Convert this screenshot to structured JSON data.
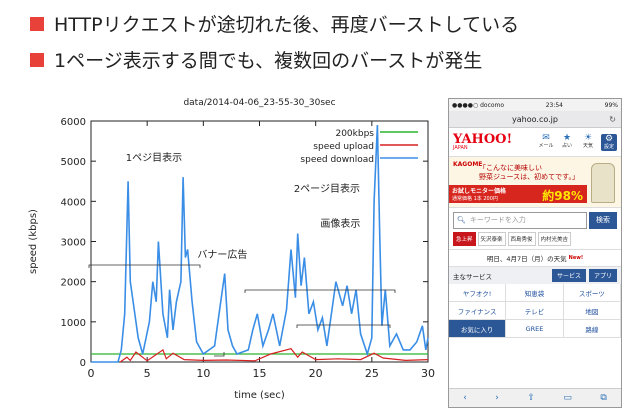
{
  "bullets": [
    "HTTPリクエストが途切れた後、再度バーストしている",
    "1ページ表示する間でも、複数回のバーストが発生"
  ],
  "colors": {
    "bullet": "#e8413a",
    "series_200kbps": "#2db52d",
    "series_upload": "#d62020",
    "series_download": "#3a8ee6"
  },
  "chart_data": {
    "type": "line",
    "title": "data/2014-04-06_23-55-30_30sec",
    "xlabel": "time (sec)",
    "ylabel": "speed (kbps)",
    "xlim": [
      0,
      30
    ],
    "ylim": [
      0,
      6000
    ],
    "xticks": [
      "0",
      "5",
      "10",
      "15",
      "20",
      "25",
      "30"
    ],
    "yticks": [
      "0",
      "1000",
      "2000",
      "3000",
      "4000",
      "5000",
      "6000"
    ],
    "legend_position": "top-right",
    "series": [
      {
        "name": "200kbps",
        "x": [
          0,
          30
        ],
        "values": [
          200,
          200
        ]
      },
      {
        "name": "speed upload",
        "x": [
          2.6,
          3.2,
          3.5,
          4.0,
          5.0,
          6.4,
          6.7,
          7.3,
          8.3,
          10.0,
          12.0,
          14.6,
          16.0,
          17.8,
          18.4,
          18.8,
          20.0,
          22.0,
          24.0,
          25.2,
          26.0,
          28.0,
          30.0
        ],
        "values": [
          0,
          120,
          40,
          250,
          30,
          300,
          80,
          220,
          60,
          40,
          50,
          30,
          200,
          330,
          120,
          250,
          60,
          80,
          60,
          220,
          100,
          40,
          60
        ]
      },
      {
        "name": "speed download",
        "x": [
          0,
          2.4,
          2.7,
          3.0,
          3.3,
          3.5,
          3.8,
          4.2,
          4.6,
          5.2,
          5.5,
          5.8,
          6.0,
          6.4,
          6.8,
          7.0,
          7.3,
          7.6,
          8.0,
          8.2,
          8.4,
          8.6,
          9.0,
          9.4,
          10.0,
          11.0,
          11.6,
          11.9,
          12.2,
          12.6,
          13.0,
          14.0,
          14.4,
          14.8,
          15.3,
          15.8,
          16.2,
          16.8,
          17.4,
          17.8,
          18.2,
          18.4,
          18.7,
          19.0,
          19.4,
          19.8,
          20.2,
          20.6,
          21.0,
          21.8,
          22.4,
          22.8,
          23.2,
          23.6,
          24.0,
          24.6,
          25.0,
          25.2,
          25.5,
          25.7,
          25.9,
          26.2,
          26.6,
          27.2,
          27.8,
          28.4,
          29.0,
          29.5,
          29.8,
          30.0
        ],
        "values": [
          0,
          0,
          300,
          1200,
          4500,
          2000,
          1400,
          600,
          200,
          1000,
          2000,
          1500,
          3000,
          1200,
          600,
          1800,
          800,
          1500,
          2000,
          4600,
          2600,
          2800,
          1500,
          500,
          200,
          400,
          1600,
          2200,
          800,
          400,
          200,
          300,
          800,
          1200,
          400,
          800,
          1200,
          400,
          1300,
          2800,
          1600,
          3200,
          1900,
          2600,
          1200,
          1500,
          800,
          1100,
          400,
          2000,
          1400,
          1900,
          1200,
          1800,
          700,
          200,
          600,
          4000,
          5900,
          3200,
          900,
          1800,
          400,
          700,
          300,
          300,
          500,
          900,
          300,
          600
        ]
      }
    ],
    "annotations": [
      {
        "text": "1ペジ目表示",
        "x": 5.6,
        "y": 5000
      },
      {
        "text": "2ページ目表示",
        "x": 21.0,
        "y": 4230
      },
      {
        "text": "画像表示",
        "x": 22.2,
        "y": 3360
      },
      {
        "text": "バナー広告",
        "x": 11.7,
        "y": 2590
      }
    ]
  },
  "phone": {
    "status": {
      "carrier": "●●●●○ docomo",
      "time": "23:54",
      "battery": "99%"
    },
    "url": "yahoo.co.jp",
    "logo": "YAHOO!",
    "logo_sub": "JAPAN",
    "header_icons": [
      {
        "icon": "mail-icon",
        "label": "メール"
      },
      {
        "icon": "fortune-icon",
        "label": "占い"
      },
      {
        "icon": "weather-icon",
        "label": "天気"
      },
      {
        "icon": "gear-icon",
        "label": "設定"
      }
    ],
    "ad": {
      "brand": "KAGOME",
      "line1": "「こんなに美味しい",
      "line2": "野菜ジュースは、初めてです。」",
      "band1": "お試しモニター価格",
      "band2": "通常価格 1本 200円",
      "percent": "約98%"
    },
    "search": {
      "placeholder": "キーワードを入力",
      "button": "検索"
    },
    "trending": [
      "急上昇",
      "矢沢泰楽",
      "西島秀俊",
      "内村光美吉"
    ],
    "forecast": "明日、4月7日（月）の天気",
    "forecast_badge": "New!",
    "services": {
      "label": "主なサービス",
      "btn1": "サービス",
      "btn2": "アプリ"
    },
    "grid": [
      "ヤフオク!",
      "知恵袋",
      "スポーツ",
      "ファイナンス",
      "テレビ",
      "地図",
      "お気に入り",
      "GREE",
      "路線"
    ]
  }
}
